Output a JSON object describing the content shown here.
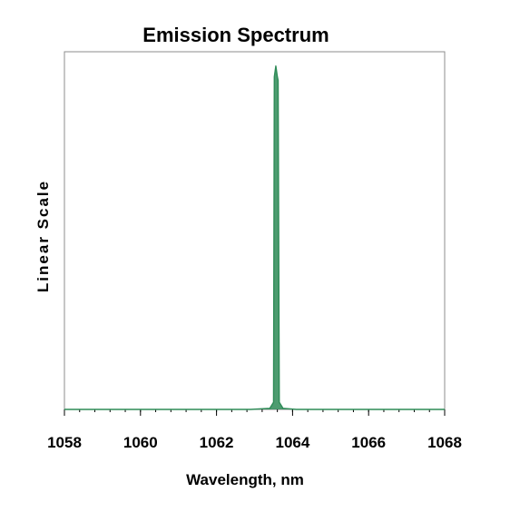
{
  "chart_data": {
    "type": "line",
    "title": "Emission Spectrum",
    "xlabel": "Wavelength, nm",
    "ylabel": "Linear Scale",
    "xlim": [
      1058,
      1068
    ],
    "ylim": [
      0,
      1
    ],
    "x_ticks": [
      1058,
      1060,
      1062,
      1064,
      1066,
      1068
    ],
    "x_minor_step": 0.4,
    "y_ticks_shown": false,
    "grid": false,
    "legend": "none",
    "series": [
      {
        "color": "#2e8b57",
        "x": [
          1058,
          1062.9,
          1063.4,
          1063.5,
          1063.52,
          1063.56,
          1063.6,
          1063.62,
          1063.65,
          1063.75,
          1064.1,
          1068
        ],
        "y": [
          0,
          0,
          0.003,
          0.02,
          0.93,
          0.96,
          0.93,
          0.92,
          0.02,
          0.003,
          0,
          0
        ]
      }
    ]
  }
}
